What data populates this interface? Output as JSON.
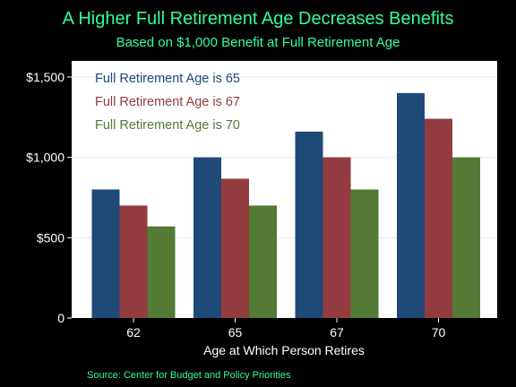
{
  "colors": {
    "background": "#000000",
    "plot_background": "#ffffff",
    "title_text": "#33ff99",
    "series": [
      "#1f4a78",
      "#943b3f",
      "#537b35"
    ]
  },
  "chart_data": {
    "type": "bar",
    "title": "A Higher Full Retirement Age Decreases Benefits",
    "subtitle": "Based on $1,000 Benefit at Full Retirement Age",
    "xlabel": "Age at Which Person Retires",
    "ylabel": "",
    "categories": [
      "62",
      "65",
      "67",
      "70"
    ],
    "series": [
      {
        "name": "Full Retirement Age is 65",
        "values": [
          800,
          1000,
          1160,
          1400
        ]
      },
      {
        "name": "Full Retirement Age is 67",
        "values": [
          700,
          867,
          1000,
          1240
        ]
      },
      {
        "name": "Full Retirement Age is 70",
        "values": [
          570,
          700,
          800,
          1000
        ]
      }
    ],
    "ylim": [
      0,
      1600
    ],
    "yticks": [
      0,
      500,
      1000,
      1500
    ],
    "ytick_labels": [
      "0",
      "$500",
      "$1,000",
      "$1,500"
    ],
    "grid": true,
    "legend": "top-left"
  },
  "source": "Source: Center for Budget and Policy Priorities"
}
